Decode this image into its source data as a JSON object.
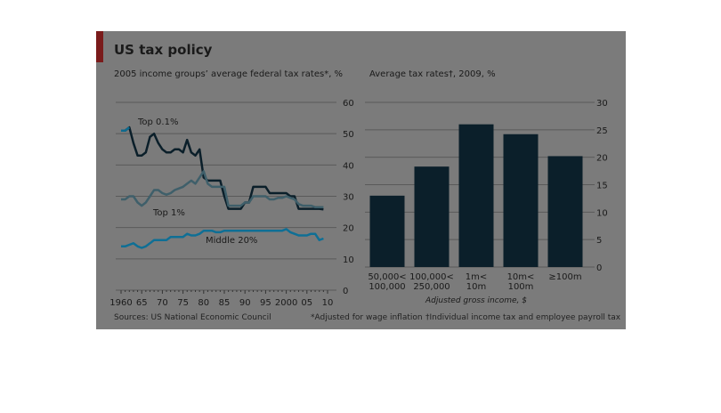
{
  "header": {
    "title": "US tax policy",
    "subtitle_left": "2005 income groups’ average federal tax rates*, %",
    "subtitle_right": "Average tax rates†, 2009, %"
  },
  "footer": {
    "source": "Sources: US National Economic Council",
    "note_star": "*Adjusted for wage inflation",
    "note_dagger": "†Individual income tax and employee payroll tax"
  },
  "colors": {
    "frame": "#7b7b7b",
    "accent": "#7a1b1b",
    "top01": "#0e6a8e",
    "top01_dark": "#0b1f2a",
    "top1": "#3f5f6a",
    "middle20": "#0f6f95",
    "bar": "#0b1f2a",
    "grid": "#5a5a5a"
  },
  "chart_data": [
    {
      "type": "line",
      "ylim": [
        0,
        60
      ],
      "yticks": [
        "0",
        "10",
        "20",
        "30",
        "40",
        "50",
        "60"
      ],
      "xlim": [
        1960,
        2010
      ],
      "xticks": [
        "1960",
        "65",
        "70",
        "75",
        "80",
        "85",
        "90",
        "95",
        "2000",
        "05",
        "10"
      ],
      "xtick_values": [
        1960,
        1965,
        1970,
        1975,
        1980,
        1985,
        1990,
        1995,
        2000,
        2005,
        2010
      ],
      "series": [
        {
          "name": "Top 0.1%",
          "x": [
            1960,
            1961,
            1962,
            1963,
            1964,
            1965,
            1966,
            1967,
            1968,
            1969,
            1970,
            1971,
            1972,
            1973,
            1974,
            1975,
            1976,
            1977,
            1978,
            1979,
            1980,
            1981,
            1982,
            1983,
            1984,
            1985,
            1986,
            1987,
            1988,
            1989,
            1990,
            1991,
            1992,
            1993,
            1994,
            1995,
            1996,
            1997,
            1998,
            1999,
            2000,
            2001,
            2002,
            2003,
            2004,
            2005,
            2006,
            2007,
            2008,
            2009
          ],
          "values": [
            51,
            51,
            52,
            47,
            43,
            43,
            44,
            49,
            50,
            47,
            45,
            44,
            44,
            45,
            45,
            44,
            48,
            44,
            43,
            45,
            36,
            35,
            35,
            35,
            35,
            30,
            26,
            26,
            26,
            26,
            28,
            28,
            33,
            33,
            33,
            33,
            31,
            31,
            31,
            31,
            31,
            30,
            30,
            26,
            26,
            26,
            26,
            26,
            26,
            25.8
          ]
        },
        {
          "name": "Top 1%",
          "x": [
            1960,
            1961,
            1962,
            1963,
            1964,
            1965,
            1966,
            1967,
            1968,
            1969,
            1970,
            1971,
            1972,
            1973,
            1974,
            1975,
            1976,
            1977,
            1978,
            1979,
            1980,
            1981,
            1982,
            1983,
            1984,
            1985,
            1986,
            1987,
            1988,
            1989,
            1990,
            1991,
            1992,
            1993,
            1994,
            1995,
            1996,
            1997,
            1998,
            1999,
            2000,
            2001,
            2002,
            2003,
            2004,
            2005,
            2006,
            2007,
            2008,
            2009
          ],
          "values": [
            29,
            29,
            30,
            30,
            28,
            27,
            28,
            30,
            32,
            32,
            31,
            30.5,
            31,
            32,
            32.5,
            33,
            34,
            35,
            34,
            36,
            38,
            34,
            33,
            33,
            33,
            33,
            27,
            27,
            27,
            27,
            28,
            28,
            30,
            30,
            30,
            30,
            29,
            29,
            29.5,
            29.5,
            30,
            29.5,
            29,
            27.5,
            27,
            27,
            27,
            26.5,
            26.5,
            26.5
          ]
        },
        {
          "name": "Middle 20%",
          "x": [
            1960,
            1961,
            1962,
            1963,
            1964,
            1965,
            1966,
            1967,
            1968,
            1969,
            1970,
            1971,
            1972,
            1973,
            1974,
            1975,
            1976,
            1977,
            1978,
            1979,
            1980,
            1981,
            1982,
            1983,
            1984,
            1985,
            1986,
            1987,
            1988,
            1989,
            1990,
            1991,
            1992,
            1993,
            1994,
            1995,
            1996,
            1997,
            1998,
            1999,
            2000,
            2001,
            2002,
            2003,
            2004,
            2005,
            2006,
            2007,
            2008,
            2009
          ],
          "values": [
            14,
            14,
            14.5,
            15,
            14,
            13.5,
            14,
            15,
            16,
            16,
            16,
            16,
            17,
            17,
            17,
            17,
            18,
            17.5,
            17.5,
            18,
            19,
            19,
            19,
            18.5,
            18.5,
            19,
            19,
            19,
            19,
            19,
            19,
            19,
            19,
            19,
            19,
            19,
            19,
            19,
            19,
            19,
            19.5,
            18.5,
            18,
            17.5,
            17.5,
            17.5,
            18,
            18,
            16,
            16.5
          ]
        }
      ]
    },
    {
      "type": "bar",
      "ylim": [
        0,
        30
      ],
      "yticks": [
        "0",
        "5",
        "10",
        "15",
        "20",
        "25",
        "30"
      ],
      "categories": [
        [
          "50,000<",
          "100,000"
        ],
        [
          "100,000<",
          "250,000"
        ],
        [
          "1m<",
          "10m"
        ],
        [
          "10m<",
          "100m"
        ],
        [
          "≥100m"
        ]
      ],
      "values": [
        13,
        18.3,
        26,
        24.2,
        20.2
      ],
      "xlabel": "Adjusted gross income, $"
    }
  ]
}
